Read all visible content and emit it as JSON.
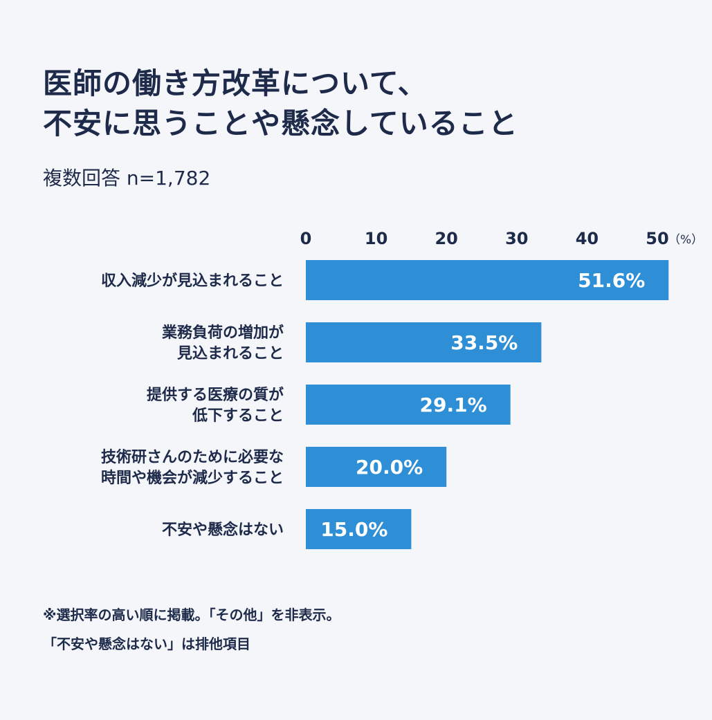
{
  "title_lines": [
    "医師の働き方改革について、",
    "不安に思うことや懸念していること"
  ],
  "subtitle": "複数回答 n=1,782",
  "chart_data": {
    "type": "bar",
    "orientation": "horizontal",
    "categories": [
      [
        "収入減少が見込まれること"
      ],
      [
        "業務負荷の増加が",
        "見込まれること"
      ],
      [
        "提供する医療の質が",
        "低下すること"
      ],
      [
        "技術研さんのために必要な",
        "時間や機会が減少すること"
      ],
      [
        "不安や懸念はない"
      ]
    ],
    "values": [
      51.6,
      33.5,
      29.1,
      20.0,
      15.0
    ],
    "value_labels": [
      "51.6%",
      "33.5%",
      "29.1%",
      "20.0%",
      "15.0%"
    ],
    "x_ticks": [
      0,
      10,
      20,
      30,
      40,
      50
    ],
    "x_unit": "（%）",
    "xlim": [
      0,
      50
    ],
    "bar_color": "#2f8fd6",
    "label_color": "#ffffff",
    "text_color": "#1e2a4a"
  },
  "notes": [
    "※選択率の高い順に掲載。「その他」を非表示。",
    "「不安や懸念はない」は排他項目"
  ]
}
